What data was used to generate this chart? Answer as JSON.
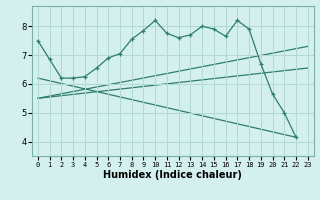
{
  "xlabel": "Humidex (Indice chaleur)",
  "ylabel": "",
  "background_color": "#d4f0ee",
  "grid_color": "#b0d8d4",
  "line_color": "#2e7d6e",
  "xlim": [
    -0.5,
    23.5
  ],
  "ylim": [
    3.5,
    8.7
  ],
  "x_ticks": [
    0,
    1,
    2,
    3,
    4,
    5,
    6,
    7,
    8,
    9,
    10,
    11,
    12,
    13,
    14,
    15,
    16,
    17,
    18,
    19,
    20,
    21,
    22,
    23
  ],
  "y_ticks": [
    4,
    5,
    6,
    7,
    8
  ],
  "curve1_x": [
    0,
    1,
    2,
    3,
    4,
    5,
    6,
    7,
    8,
    9,
    10,
    11,
    12,
    13,
    14,
    15,
    16,
    17,
    18,
    19,
    20,
    21,
    22
  ],
  "curve1_y": [
    7.5,
    6.85,
    6.2,
    6.2,
    6.25,
    6.55,
    6.9,
    7.05,
    7.55,
    7.85,
    8.2,
    7.75,
    7.6,
    7.7,
    8.0,
    7.9,
    7.65,
    8.2,
    7.9,
    6.7,
    5.65,
    5.0,
    4.15
  ],
  "line2_x": [
    0,
    23
  ],
  "line2_y": [
    5.5,
    7.3
  ],
  "line3_x": [
    0,
    22
  ],
  "line3_y": [
    6.2,
    4.15
  ],
  "line4_x": [
    0,
    23
  ],
  "line4_y": [
    5.5,
    6.55
  ]
}
